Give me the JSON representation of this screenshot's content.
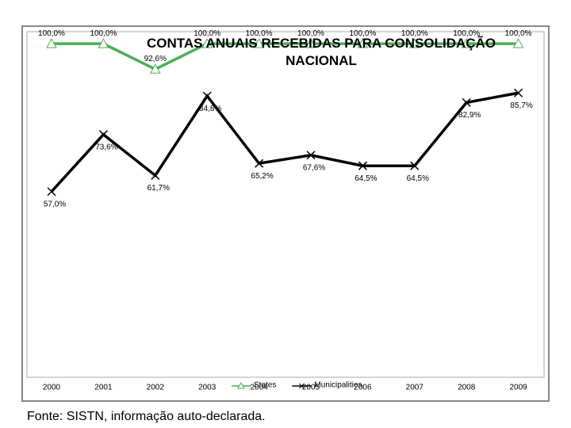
{
  "chart_data": {
    "type": "line",
    "title": "CONTAS ANUAIS RECEBIDAS PARA CONSOLIDAÇÃO NACIONAL",
    "categories": [
      "2000",
      "2001",
      "2002",
      "2003",
      "2004",
      "2005",
      "2006",
      "2007",
      "2008",
      "2009"
    ],
    "series": [
      {
        "name": "States",
        "color": "#4caf50",
        "values": [
          100.0,
          100.0,
          92.6,
          100.0,
          100.0,
          100.0,
          100.0,
          100.0,
          100.0,
          100.0
        ],
        "value_labels": [
          "100,0%",
          "100,0%",
          "92,6%",
          "100,0%",
          "100,0%",
          "100,0%",
          "100,0%",
          "100,0%",
          "100,0%",
          "100,0%"
        ]
      },
      {
        "name": "Municipalities",
        "color": "#000000",
        "values": [
          57.0,
          73.6,
          61.7,
          84.8,
          65.2,
          67.6,
          64.5,
          64.5,
          82.9,
          85.7
        ],
        "value_labels": [
          "57,0%",
          "73,6%",
          "61,7%",
          "84,8%",
          "65,2%",
          "67,6%",
          "64,5%",
          "64,5%",
          "82,9%",
          "85,7%"
        ]
      }
    ],
    "ylim": [
      3,
      103.5
    ],
    "source": "Fonte: SISTN, informação auto-declarada."
  }
}
